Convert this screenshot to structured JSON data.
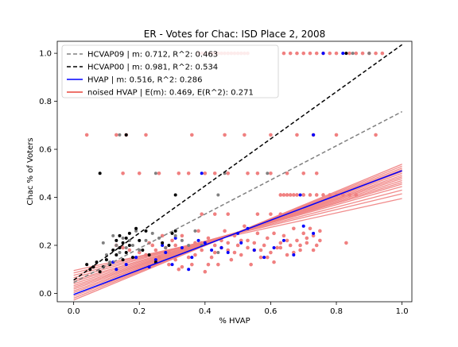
{
  "chart_data": {
    "type": "scatter",
    "title": "ER - Votes for Chac: ISD Place 2, 2008",
    "xlabel": "% HVAP",
    "ylabel": "Chac % of Voters",
    "xlim": [
      -0.05,
      1.03
    ],
    "ylim": [
      -0.035,
      1.05
    ],
    "xticks": [
      0.0,
      0.2,
      0.4,
      0.6,
      0.8,
      1.0
    ],
    "yticks": [
      0.0,
      0.2,
      0.4,
      0.6,
      0.8,
      1.0
    ],
    "tick_labels_x": [
      "0.0",
      "0.2",
      "0.4",
      "0.6",
      "0.8",
      "1.0"
    ],
    "tick_labels_y": [
      "0.0",
      "0.2",
      "0.4",
      "0.6",
      "0.8",
      "1.0"
    ],
    "grid": false,
    "legend_position": "top-left",
    "colors": {
      "hcvap09": "#808080",
      "hcvap00": "#000000",
      "hvap": "#0000ff",
      "noised": "#f08080",
      "noised_legend": "#e8463c"
    },
    "lines": [
      {
        "name": "HCVAP09 | m: 0.712, R^2: 0.463",
        "style": "dashed",
        "color": "#808080",
        "x": [
          0.0,
          1.0
        ],
        "y": [
          0.045,
          0.757
        ]
      },
      {
        "name": "HCVAP00 | m: 0.981, R^2: 0.534",
        "style": "dashed",
        "color": "#000000",
        "x": [
          0.0,
          1.0
        ],
        "y": [
          0.055,
          1.036
        ]
      },
      {
        "name": "HVAP | m: 0.516, R^2: 0.286",
        "style": "solid",
        "color": "#0000ff",
        "x": [
          0.0,
          1.0
        ],
        "y": [
          -0.005,
          0.511
        ]
      },
      {
        "name": "noised HVAP | E(m): 0.469, E(R^2): 0.271",
        "style": "solid",
        "color": "#f08080",
        "x": [
          0.0,
          1.0
        ],
        "y": [
          0.03,
          0.499
        ]
      }
    ],
    "noised_fan": [
      [
        0.095,
        0.395
      ],
      [
        0.085,
        0.415
      ],
      [
        0.075,
        0.43
      ],
      [
        0.065,
        0.445
      ],
      [
        0.055,
        0.455
      ],
      [
        0.048,
        0.462
      ],
      [
        0.04,
        0.47
      ],
      [
        0.032,
        0.478
      ],
      [
        0.025,
        0.485
      ],
      [
        0.018,
        0.492
      ],
      [
        0.01,
        0.5
      ],
      [
        0.003,
        0.507
      ],
      [
        -0.005,
        0.515
      ],
      [
        -0.012,
        0.522
      ],
      [
        -0.02,
        0.53
      ],
      [
        -0.028,
        0.538
      ]
    ],
    "series": [
      {
        "name": "noised HVAP points",
        "color": "#f08080",
        "points": [
          [
            0.04,
            0.66
          ],
          [
            0.13,
            0.66
          ],
          [
            0.16,
            0.66
          ],
          [
            0.22,
            0.66
          ],
          [
            0.36,
            0.66
          ],
          [
            0.46,
            0.66
          ],
          [
            0.52,
            0.66
          ],
          [
            0.6,
            0.66
          ],
          [
            0.68,
            0.66
          ],
          [
            0.73,
            0.66
          ],
          [
            0.8,
            0.66
          ],
          [
            0.92,
            0.66
          ],
          [
            0.15,
            0.5
          ],
          [
            0.2,
            0.5
          ],
          [
            0.26,
            0.5
          ],
          [
            0.32,
            0.5
          ],
          [
            0.35,
            0.5
          ],
          [
            0.4,
            0.5
          ],
          [
            0.43,
            0.5
          ],
          [
            0.47,
            0.5
          ],
          [
            0.53,
            0.5
          ],
          [
            0.56,
            0.5
          ],
          [
            0.6,
            0.5
          ],
          [
            0.65,
            0.5
          ],
          [
            0.7,
            0.5
          ],
          [
            0.74,
            0.5
          ],
          [
            0.63,
            0.41
          ],
          [
            0.64,
            0.41
          ],
          [
            0.65,
            0.41
          ],
          [
            0.66,
            0.41
          ],
          [
            0.67,
            0.41
          ],
          [
            0.68,
            0.41
          ],
          [
            0.7,
            0.41
          ],
          [
            0.72,
            0.41
          ],
          [
            0.74,
            0.41
          ],
          [
            0.76,
            0.41
          ],
          [
            0.78,
            0.41
          ],
          [
            0.8,
            0.41
          ],
          [
            0.82,
            0.41
          ],
          [
            0.84,
            0.41
          ],
          [
            0.86,
            0.41
          ],
          [
            0.39,
            0.33
          ],
          [
            0.43,
            0.33
          ],
          [
            0.47,
            0.33
          ],
          [
            0.56,
            0.33
          ],
          [
            0.6,
            0.33
          ],
          [
            0.63,
            0.33
          ],
          [
            0.38,
            1.0
          ],
          [
            0.39,
            1.0
          ],
          [
            0.4,
            1.0
          ],
          [
            0.41,
            1.0
          ],
          [
            0.42,
            1.0
          ],
          [
            0.43,
            1.0
          ],
          [
            0.44,
            1.0
          ],
          [
            0.45,
            1.0
          ],
          [
            0.46,
            1.0
          ],
          [
            0.47,
            1.0
          ],
          [
            0.48,
            1.0
          ],
          [
            0.49,
            1.0
          ],
          [
            0.5,
            1.0
          ],
          [
            0.51,
            1.0
          ],
          [
            0.52,
            1.0
          ],
          [
            0.53,
            1.0
          ],
          [
            0.64,
            1.0
          ],
          [
            0.66,
            1.0
          ],
          [
            0.68,
            1.0
          ],
          [
            0.7,
            1.0
          ],
          [
            0.72,
            1.0
          ],
          [
            0.74,
            1.0
          ],
          [
            0.76,
            1.0
          ],
          [
            0.78,
            1.0
          ],
          [
            0.8,
            1.0
          ],
          [
            0.84,
            1.0
          ],
          [
            0.86,
            1.0
          ],
          [
            0.88,
            1.0
          ],
          [
            0.9,
            1.0
          ],
          [
            0.92,
            1.0
          ],
          [
            0.94,
            1.0
          ],
          [
            0.13,
            0.2
          ],
          [
            0.15,
            0.19
          ],
          [
            0.17,
            0.18
          ],
          [
            0.2,
            0.17
          ],
          [
            0.22,
            0.16
          ],
          [
            0.24,
            0.2
          ],
          [
            0.26,
            0.15
          ],
          [
            0.28,
            0.19
          ],
          [
            0.29,
            0.12
          ],
          [
            0.3,
            0.22
          ],
          [
            0.31,
            0.14
          ],
          [
            0.32,
            0.1
          ],
          [
            0.33,
            0.24
          ],
          [
            0.34,
            0.19
          ],
          [
            0.35,
            0.15
          ],
          [
            0.36,
            0.12
          ],
          [
            0.37,
            0.21
          ],
          [
            0.38,
            0.26
          ],
          [
            0.39,
            0.18
          ],
          [
            0.4,
            0.09
          ],
          [
            0.41,
            0.23
          ],
          [
            0.42,
            0.15
          ],
          [
            0.43,
            0.2
          ],
          [
            0.44,
            0.12
          ],
          [
            0.45,
            0.22
          ],
          [
            0.46,
            0.26
          ],
          [
            0.47,
            0.18
          ],
          [
            0.48,
            0.14
          ],
          [
            0.49,
            0.24
          ],
          [
            0.5,
            0.2
          ],
          [
            0.51,
            0.16
          ],
          [
            0.52,
            0.28
          ],
          [
            0.53,
            0.22
          ],
          [
            0.54,
            0.12
          ],
          [
            0.55,
            0.18
          ],
          [
            0.56,
            0.25
          ],
          [
            0.57,
            0.15
          ],
          [
            0.58,
            0.2
          ],
          [
            0.59,
            0.23
          ],
          [
            0.6,
            0.17
          ],
          [
            0.61,
            0.13
          ],
          [
            0.62,
            0.19
          ],
          [
            0.63,
            0.21
          ],
          [
            0.64,
            0.24
          ],
          [
            0.65,
            0.16
          ],
          [
            0.66,
            0.2
          ],
          [
            0.67,
            0.27
          ],
          [
            0.68,
            0.22
          ],
          [
            0.69,
            0.18
          ],
          [
            0.7,
            0.25
          ],
          [
            0.71,
            0.21
          ],
          [
            0.72,
            0.27
          ],
          [
            0.73,
            0.24
          ],
          [
            0.74,
            0.2
          ],
          [
            0.75,
            0.22
          ],
          [
            0.23,
            0.21
          ],
          [
            0.25,
            0.18
          ],
          [
            0.27,
            0.24
          ],
          [
            0.29,
            0.17
          ],
          [
            0.31,
            0.2
          ],
          [
            0.33,
            0.11
          ],
          [
            0.35,
            0.19
          ],
          [
            0.37,
            0.16
          ],
          [
            0.39,
            0.21
          ],
          [
            0.41,
            0.12
          ],
          [
            0.43,
            0.17
          ],
          [
            0.45,
            0.19
          ],
          [
            0.47,
            0.21
          ],
          [
            0.49,
            0.17
          ],
          [
            0.51,
            0.22
          ],
          [
            0.53,
            0.19
          ],
          [
            0.55,
            0.21
          ],
          [
            0.57,
            0.18
          ],
          [
            0.59,
            0.15
          ],
          [
            0.61,
            0.25
          ],
          [
            0.63,
            0.19
          ],
          [
            0.65,
            0.22
          ],
          [
            0.67,
            0.17
          ],
          [
            0.69,
            0.2
          ],
          [
            0.71,
            0.23
          ],
          [
            0.73,
            0.18
          ],
          [
            0.75,
            0.26
          ],
          [
            0.83,
            0.21
          ]
        ]
      },
      {
        "name": "HVAP points",
        "color": "#0000ff",
        "points": [
          [
            0.76,
            1.0
          ],
          [
            0.82,
            1.0
          ],
          [
            0.73,
            0.66
          ],
          [
            0.39,
            0.5
          ],
          [
            0.69,
            0.41
          ],
          [
            0.12,
            0.13
          ],
          [
            0.13,
            0.1
          ],
          [
            0.16,
            0.12
          ],
          [
            0.19,
            0.15
          ],
          [
            0.23,
            0.11
          ],
          [
            0.25,
            0.14
          ],
          [
            0.27,
            0.2
          ],
          [
            0.28,
            0.17
          ],
          [
            0.3,
            0.12
          ],
          [
            0.31,
            0.23
          ],
          [
            0.33,
            0.19
          ],
          [
            0.35,
            0.1
          ],
          [
            0.36,
            0.15
          ],
          [
            0.38,
            0.22
          ],
          [
            0.4,
            0.21
          ],
          [
            0.42,
            0.18
          ],
          [
            0.45,
            0.19
          ],
          [
            0.47,
            0.17
          ],
          [
            0.5,
            0.25
          ],
          [
            0.51,
            0.21
          ],
          [
            0.53,
            0.27
          ],
          [
            0.55,
            0.18
          ],
          [
            0.58,
            0.15
          ],
          [
            0.61,
            0.19
          ],
          [
            0.64,
            0.22
          ],
          [
            0.67,
            0.16
          ],
          [
            0.7,
            0.28
          ],
          [
            0.73,
            0.25
          ]
        ]
      },
      {
        "name": "HCVAP09 points",
        "color": "#808080",
        "points": [
          [
            0.85,
            1.0
          ],
          [
            0.9,
            1.0
          ],
          [
            0.14,
            0.66
          ],
          [
            0.25,
            0.5
          ],
          [
            0.46,
            0.5
          ],
          [
            0.59,
            0.5
          ],
          [
            0.44,
            0.41
          ],
          [
            0.09,
            0.21
          ],
          [
            0.1,
            0.16
          ],
          [
            0.11,
            0.13
          ],
          [
            0.12,
            0.24
          ],
          [
            0.13,
            0.2
          ],
          [
            0.14,
            0.17
          ],
          [
            0.15,
            0.23
          ],
          [
            0.16,
            0.19
          ],
          [
            0.17,
            0.22
          ],
          [
            0.18,
            0.2
          ],
          [
            0.19,
            0.26
          ],
          [
            0.2,
            0.18
          ],
          [
            0.22,
            0.22
          ],
          [
            0.24,
            0.25
          ],
          [
            0.26,
            0.23
          ],
          [
            0.28,
            0.19
          ],
          [
            0.31,
            0.24
          ],
          [
            0.33,
            0.22
          ],
          [
            0.35,
            0.2
          ],
          [
            0.37,
            0.26
          ],
          [
            0.39,
            0.2
          ],
          [
            0.44,
            0.17
          ]
        ]
      },
      {
        "name": "HCVAP00 points",
        "color": "#000000",
        "points": [
          [
            0.83,
            1.0
          ],
          [
            0.16,
            0.66
          ],
          [
            0.08,
            0.5
          ],
          [
            0.31,
            0.41
          ],
          [
            0.04,
            0.12
          ],
          [
            0.05,
            0.1
          ],
          [
            0.06,
            0.11
          ],
          [
            0.07,
            0.13
          ],
          [
            0.08,
            0.09
          ],
          [
            0.09,
            0.11
          ],
          [
            0.1,
            0.14
          ],
          [
            0.11,
            0.12
          ],
          [
            0.12,
            0.18
          ],
          [
            0.13,
            0.22
          ],
          [
            0.13,
            0.16
          ],
          [
            0.14,
            0.19
          ],
          [
            0.14,
            0.24
          ],
          [
            0.15,
            0.21
          ],
          [
            0.15,
            0.14
          ],
          [
            0.16,
            0.23
          ],
          [
            0.16,
            0.17
          ],
          [
            0.17,
            0.2
          ],
          [
            0.17,
            0.25
          ],
          [
            0.18,
            0.15
          ],
          [
            0.19,
            0.27
          ],
          [
            0.2,
            0.22
          ],
          [
            0.21,
            0.18
          ],
          [
            0.22,
            0.26
          ],
          [
            0.23,
            0.16
          ],
          [
            0.25,
            0.13
          ],
          [
            0.27,
            0.21
          ],
          [
            0.29,
            0.2
          ],
          [
            0.3,
            0.25
          ],
          [
            0.31,
            0.26
          ]
        ]
      }
    ]
  }
}
